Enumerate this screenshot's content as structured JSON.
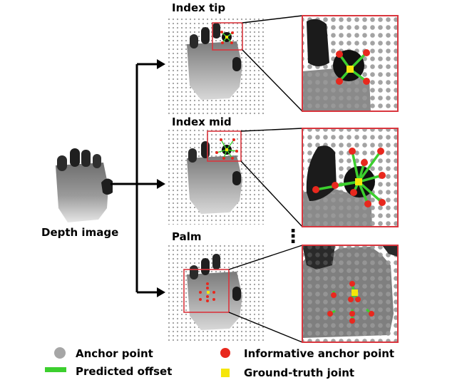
{
  "labels": {
    "depth_image": "Depth image",
    "panel_index_tip": "Index tip",
    "panel_index_mid": "Index mid",
    "panel_palm": "Palm",
    "ellipsis": "⋮"
  },
  "legend": {
    "anchor_point": "Anchor point",
    "informative_anchor_point": "Informative anchor point",
    "predicted_offset": "Predicted offset",
    "ground_truth_joint": "Ground-truth joint"
  },
  "colors": {
    "anchor": "#a6a6a6",
    "informative": "#e8281e",
    "offset": "#3ccf2e",
    "joint": "#f5e60a",
    "frame": "#d9363e",
    "arrow": "#000000"
  }
}
